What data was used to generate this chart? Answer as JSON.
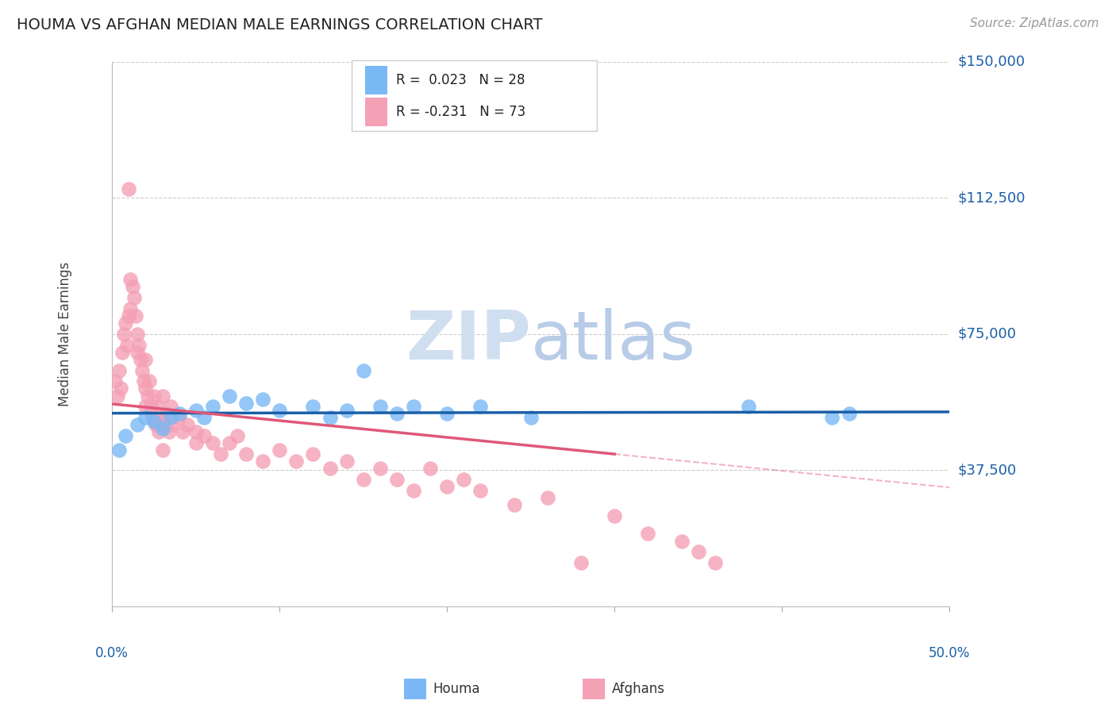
{
  "title": "HOUMA VS AFGHAN MEDIAN MALE EARNINGS CORRELATION CHART",
  "source": "Source: ZipAtlas.com",
  "ylabel": "Median Male Earnings",
  "yticks": [
    0,
    37500,
    75000,
    112500,
    150000
  ],
  "ytick_labels": [
    "",
    "$37,500",
    "$75,000",
    "$112,500",
    "$150,000"
  ],
  "xmin": 0.0,
  "xmax": 50.0,
  "ymin": 0,
  "ymax": 150000,
  "houma_R": 0.023,
  "houma_N": 28,
  "afghan_R": -0.231,
  "afghan_N": 73,
  "houma_color": "#7ab8f5",
  "afghan_color": "#f4a0b5",
  "houma_line_color": "#1a5fa8",
  "afghan_line_color": "#e05878",
  "afghan_line_solid_end": 30.0,
  "watermark": "ZIPatlas",
  "watermark_color": "#ccddf0",
  "bg_color": "#ffffff",
  "grid_color": "#cccccc",
  "houma_x": [
    0.4,
    0.8,
    1.5,
    2.0,
    2.5,
    3.0,
    3.5,
    4.0,
    5.0,
    5.5,
    6.0,
    7.0,
    8.0,
    9.0,
    10.0,
    12.0,
    13.0,
    14.0,
    15.0,
    16.0,
    17.0,
    18.0,
    20.0,
    22.0,
    25.0,
    38.0,
    43.0,
    44.0
  ],
  "houma_y": [
    43000,
    47000,
    50000,
    52000,
    51000,
    49000,
    52000,
    53000,
    54000,
    52000,
    55000,
    58000,
    56000,
    57000,
    54000,
    55000,
    52000,
    54000,
    65000,
    55000,
    53000,
    55000,
    53000,
    55000,
    52000,
    55000,
    52000,
    53000
  ],
  "afghan_x": [
    0.2,
    0.3,
    0.4,
    0.5,
    0.6,
    0.7,
    0.8,
    0.9,
    1.0,
    1.0,
    1.1,
    1.1,
    1.2,
    1.3,
    1.4,
    1.5,
    1.5,
    1.6,
    1.7,
    1.8,
    1.9,
    2.0,
    2.0,
    2.0,
    2.1,
    2.2,
    2.3,
    2.4,
    2.5,
    2.6,
    2.7,
    2.8,
    3.0,
    3.0,
    3.1,
    3.2,
    3.4,
    3.5,
    3.6,
    4.0,
    4.2,
    4.5,
    5.0,
    5.0,
    5.5,
    6.0,
    6.5,
    7.0,
    7.5,
    8.0,
    9.0,
    10.0,
    11.0,
    12.0,
    13.0,
    14.0,
    15.0,
    16.0,
    17.0,
    18.0,
    19.0,
    20.0,
    21.0,
    22.0,
    24.0,
    26.0,
    28.0,
    30.0,
    32.0,
    34.0,
    35.0,
    36.0,
    3.0
  ],
  "afghan_y": [
    62000,
    58000,
    65000,
    60000,
    70000,
    75000,
    78000,
    72000,
    80000,
    115000,
    90000,
    82000,
    88000,
    85000,
    80000,
    75000,
    70000,
    72000,
    68000,
    65000,
    62000,
    60000,
    55000,
    68000,
    58000,
    62000,
    55000,
    52000,
    58000,
    50000,
    55000,
    48000,
    52000,
    58000,
    50000,
    53000,
    48000,
    55000,
    50000,
    52000,
    48000,
    50000,
    48000,
    45000,
    47000,
    45000,
    42000,
    45000,
    47000,
    42000,
    40000,
    43000,
    40000,
    42000,
    38000,
    40000,
    35000,
    38000,
    35000,
    32000,
    38000,
    33000,
    35000,
    32000,
    28000,
    30000,
    12000,
    25000,
    20000,
    18000,
    15000,
    12000,
    43000
  ]
}
